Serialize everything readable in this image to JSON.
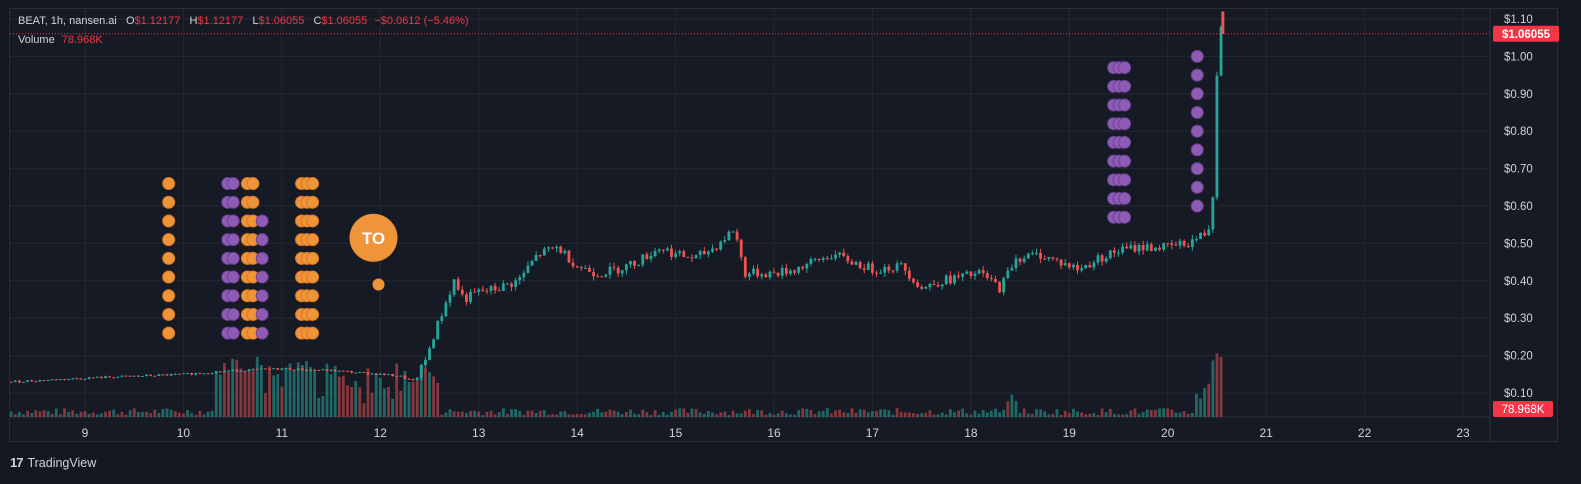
{
  "legend": {
    "symbol": "BEAT, 1h, nansen.ai",
    "o_label": "O",
    "o_value": "$1.12177",
    "h_label": "H",
    "h_value": "$1.12177",
    "l_label": "L",
    "l_value": "$1.06055",
    "c_label": "C",
    "c_value": "$1.06055",
    "change": "−$0.0612 (−5.46%)",
    "volume_label": "Volume",
    "volume_value": "78.968K"
  },
  "price_badge": "$1.06055",
  "volume_badge": "78.968K",
  "annotation_label": "TO",
  "footer": {
    "brand": "TradingView",
    "logo_glyph": "17"
  },
  "colors": {
    "up": "#26a69a",
    "down": "#ef5350",
    "background": "#161a25",
    "grid": "#242833",
    "text": "#d1d4dc",
    "orange": "#f0943a",
    "purple": "#8e5bb5"
  },
  "chart_data": {
    "type": "candlestick",
    "y_axis_ticks": [
      "$1.10",
      "$1.00",
      "$0.90",
      "$0.80",
      "$0.70",
      "$0.60",
      "$0.50",
      "$0.40",
      "$0.30",
      "$0.20",
      "$0.10"
    ],
    "y_range": [
      0.0,
      1.1
    ],
    "x_axis_ticks": [
      "9",
      "10",
      "11",
      "12",
      "13",
      "14",
      "15",
      "16",
      "17",
      "18",
      "19",
      "20",
      "21",
      "22",
      "23"
    ],
    "x_range_days": [
      8.0,
      23.3
    ],
    "price_path": [
      [
        8.25,
        0.13
      ],
      [
        9.0,
        0.14
      ],
      [
        9.5,
        0.145
      ],
      [
        10.0,
        0.15
      ],
      [
        10.5,
        0.16
      ],
      [
        11.0,
        0.165
      ],
      [
        11.5,
        0.16
      ],
      [
        12.0,
        0.15
      ],
      [
        12.2,
        0.145
      ],
      [
        12.35,
        0.13
      ],
      [
        12.45,
        0.18
      ],
      [
        12.55,
        0.26
      ],
      [
        12.65,
        0.33
      ],
      [
        12.75,
        0.4
      ],
      [
        12.85,
        0.35
      ],
      [
        13.0,
        0.37
      ],
      [
        13.2,
        0.38
      ],
      [
        13.4,
        0.4
      ],
      [
        13.6,
        0.47
      ],
      [
        13.8,
        0.49
      ],
      [
        14.0,
        0.44
      ],
      [
        14.2,
        0.42
      ],
      [
        14.4,
        0.43
      ],
      [
        14.6,
        0.45
      ],
      [
        14.85,
        0.49
      ],
      [
        15.0,
        0.47
      ],
      [
        15.2,
        0.46
      ],
      [
        15.4,
        0.49
      ],
      [
        15.6,
        0.54
      ],
      [
        15.7,
        0.42
      ],
      [
        16.0,
        0.42
      ],
      [
        16.2,
        0.43
      ],
      [
        16.4,
        0.45
      ],
      [
        16.6,
        0.47
      ],
      [
        16.8,
        0.45
      ],
      [
        17.0,
        0.43
      ],
      [
        17.3,
        0.44
      ],
      [
        17.5,
        0.38
      ],
      [
        17.7,
        0.4
      ],
      [
        17.9,
        0.41
      ],
      [
        18.1,
        0.42
      ],
      [
        18.3,
        0.38
      ],
      [
        18.45,
        0.46
      ],
      [
        18.7,
        0.47
      ],
      [
        19.0,
        0.44
      ],
      [
        19.1,
        0.43
      ],
      [
        19.3,
        0.46
      ],
      [
        19.5,
        0.48
      ],
      [
        19.7,
        0.49
      ],
      [
        20.0,
        0.49
      ],
      [
        20.2,
        0.5
      ],
      [
        20.4,
        0.53
      ],
      [
        20.45,
        0.57
      ],
      [
        20.52,
        1.1
      ],
      [
        20.56,
        1.06
      ]
    ],
    "volume_range": [
      0,
      430000
    ],
    "volume_spikes": [
      [
        10.4,
        0.24
      ],
      [
        10.55,
        0.27
      ],
      [
        10.7,
        0.26
      ],
      [
        10.9,
        0.21
      ],
      [
        11.1,
        0.22
      ],
      [
        11.2,
        0.25
      ],
      [
        11.3,
        0.23
      ],
      [
        11.5,
        0.21
      ],
      [
        11.6,
        0.17
      ],
      [
        11.7,
        0.15
      ],
      [
        12.3,
        0.16
      ],
      [
        12.45,
        0.22
      ],
      [
        12.55,
        0.17
      ],
      [
        18.4,
        0.09
      ],
      [
        20.35,
        0.1
      ],
      [
        20.42,
        0.14
      ],
      [
        20.5,
        0.31
      ],
      [
        20.56,
        0.02
      ]
    ],
    "markers": [
      {
        "color": "orange",
        "x": 9.85,
        "columns": 1,
        "y_top": 0.66,
        "y_bottom": 0.22
      },
      {
        "color": "purple",
        "x": 10.45,
        "columns": 2,
        "y_top": 0.66,
        "y_bottom": 0.22
      },
      {
        "color": "orange",
        "x": 10.65,
        "columns": 2,
        "y_top": 0.66,
        "y_bottom": 0.22
      },
      {
        "color": "purple",
        "x": 10.8,
        "columns": 1,
        "y_top": 0.56,
        "y_bottom": 0.22
      },
      {
        "color": "orange",
        "x": 11.2,
        "columns": 3,
        "y_top": 0.66,
        "y_bottom": 0.22
      },
      {
        "color": "purple",
        "x": 19.45,
        "columns": 3,
        "y_top": 0.97,
        "y_bottom": 0.53
      },
      {
        "color": "purple",
        "x": 20.3,
        "columns": 1,
        "y_top": 1.0,
        "y_bottom": 0.57
      }
    ],
    "annotation": {
      "x": 12.5,
      "price": 0.39
    }
  }
}
